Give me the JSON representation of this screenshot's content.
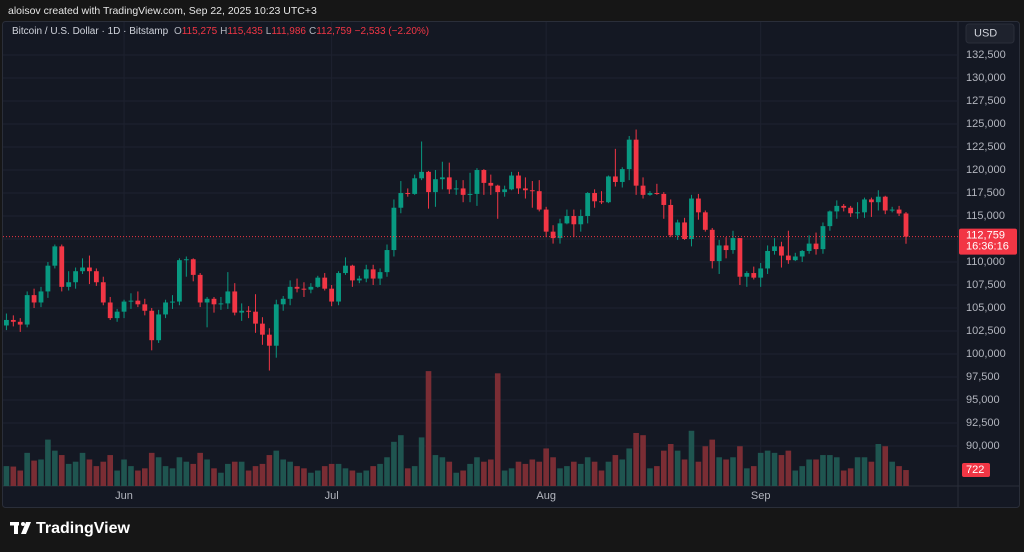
{
  "header": {
    "caption": "aloisov created with TradingView.com, Sep 22, 2025 10:23 UTC+3",
    "logo": "TradingView"
  },
  "chart_data": {
    "type": "candlestick",
    "symbol": "Bitcoin / U.S. Dollar · 1D · Bitstamp",
    "ohlc_legend": [
      {
        "key": "O",
        "value": "115,275"
      },
      {
        "key": "H",
        "value": "115,435"
      },
      {
        "key": "L",
        "value": "111,986"
      },
      {
        "key": "C",
        "value": "112,759"
      }
    ],
    "change": "−2,533 (−2.20%)",
    "currency": "USD",
    "countdown": "16:36:16",
    "categories": [
      null,
      null,
      null,
      null,
      null,
      null,
      null,
      null,
      null,
      null,
      null,
      null,
      null,
      null,
      null,
      null,
      null,
      "Jun",
      null,
      null,
      null,
      null,
      null,
      null,
      null,
      null,
      null,
      null,
      null,
      null,
      null,
      null,
      null,
      null,
      null,
      null,
      null,
      null,
      null,
      null,
      null,
      null,
      null,
      null,
      null,
      null,
      null,
      "Jul",
      null,
      null,
      null,
      null,
      null,
      null,
      null,
      null,
      null,
      null,
      null,
      null,
      null,
      null,
      null,
      null,
      null,
      null,
      null,
      null,
      null,
      null,
      null,
      null,
      null,
      null,
      null,
      null,
      null,
      null,
      "Aug",
      null,
      null,
      null,
      null,
      null,
      null,
      null,
      null,
      null,
      null,
      null,
      null,
      null,
      null,
      null,
      null,
      null,
      null,
      null,
      null,
      null,
      null,
      null,
      null,
      null,
      null,
      null,
      null,
      null,
      null,
      "Sep",
      null,
      null,
      null,
      null,
      null,
      null,
      null,
      null,
      null,
      null,
      null,
      null,
      null,
      null,
      null,
      null,
      null,
      null,
      null,
      null,
      null
    ],
    "open": [
      103100,
      103700,
      103500,
      103200,
      106400,
      105600,
      106800,
      109600,
      111700,
      107300,
      107800,
      109000,
      109400,
      109000,
      107800,
      105600,
      103900,
      104600,
      105700,
      105800,
      105400,
      104700,
      101500,
      104300,
      105600,
      105700,
      110200,
      110300,
      108600,
      105600,
      106000,
      105400,
      105500,
      106800,
      104500,
      104700,
      104600,
      103300,
      102100,
      100900,
      105400,
      106000,
      107300,
      107100,
      107000,
      107300,
      108300,
      107100,
      105700,
      108800,
      109600,
      108000,
      108200,
      109200,
      108200,
      108900,
      111300,
      115900,
      117500,
      117400,
      119100,
      119800,
      117600,
      119000,
      119200,
      117900,
      118000,
      117300,
      117400,
      120000,
      118600,
      118300,
      117600,
      117900,
      119400,
      118000,
      117800,
      117700,
      115700,
      113300,
      112600,
      114200,
      115000,
      114100,
      115000,
      117500,
      116600,
      116500,
      119300,
      118700,
      120100,
      123300,
      118300,
      117300,
      117500,
      117400,
      116200,
      112900,
      114300,
      112500,
      116900,
      115400,
      113500,
      110100,
      111800,
      111300,
      112600,
      108400,
      108800,
      108300,
      109300,
      111200,
      111700,
      110700,
      110200,
      110600,
      111200,
      112000,
      111400,
      113900,
      115500,
      116100,
      115900,
      115300,
      115400,
      116800,
      116500,
      117100,
      115600,
      115700,
      115275
    ],
    "high": [
      104400,
      104200,
      103900,
      106800,
      107100,
      107300,
      110000,
      111900,
      111900,
      109000,
      109400,
      110400,
      110700,
      109300,
      108400,
      106200,
      104900,
      105900,
      106600,
      106800,
      106000,
      105000,
      104800,
      105900,
      106400,
      110400,
      110600,
      110400,
      108800,
      106200,
      106200,
      106200,
      108900,
      107700,
      105500,
      105200,
      106500,
      104000,
      102800,
      105900,
      106300,
      108000,
      108200,
      107800,
      107700,
      108500,
      108800,
      107500,
      109000,
      110500,
      109700,
      108500,
      109700,
      109700,
      109300,
      111900,
      116800,
      118800,
      118000,
      119500,
      123100,
      119900,
      120000,
      120900,
      120800,
      118900,
      118900,
      119700,
      120200,
      120100,
      119500,
      118400,
      118300,
      119800,
      119800,
      119200,
      118800,
      118900,
      116000,
      114000,
      114700,
      115700,
      115700,
      115700,
      117600,
      117900,
      117700,
      119400,
      122300,
      120300,
      123700,
      124400,
      119200,
      117700,
      118500,
      117600,
      116800,
      114600,
      114800,
      117300,
      117400,
      115600,
      113700,
      112400,
      112700,
      113400,
      112600,
      109000,
      109500,
      109900,
      111800,
      112600,
      112200,
      113400,
      111000,
      111300,
      112900,
      113200,
      114300,
      115600,
      116700,
      116300,
      116100,
      116500,
      117000,
      117000,
      117800,
      117200,
      116000,
      116100,
      115435
    ],
    "low": [
      102600,
      103000,
      102400,
      102900,
      105000,
      105100,
      106100,
      109300,
      106800,
      106900,
      107100,
      108700,
      107600,
      107400,
      105300,
      103700,
      103500,
      103900,
      104900,
      105100,
      104200,
      100400,
      101200,
      103900,
      104900,
      105300,
      108400,
      107900,
      105100,
      102900,
      104500,
      104800,
      104900,
      104200,
      103600,
      103900,
      102300,
      101000,
      98200,
      99600,
      104700,
      105300,
      106700,
      106200,
      106600,
      107200,
      106900,
      105200,
      105300,
      108600,
      107300,
      107700,
      107800,
      107500,
      107500,
      108400,
      110600,
      115300,
      117100,
      117300,
      118900,
      115800,
      116000,
      117900,
      117400,
      117300,
      116500,
      116500,
      116100,
      117300,
      117300,
      114700,
      117100,
      117800,
      117400,
      116900,
      115900,
      115500,
      112700,
      112000,
      112000,
      114100,
      112700,
      113300,
      114200,
      115900,
      116300,
      116400,
      118200,
      118100,
      118900,
      117300,
      116900,
      117200,
      117300,
      114700,
      112700,
      112400,
      112400,
      111700,
      114600,
      113300,
      109300,
      108700,
      110400,
      110900,
      107500,
      107300,
      108100,
      107300,
      108700,
      110800,
      109400,
      109800,
      110100,
      110000,
      110900,
      110800,
      110900,
      113400,
      114700,
      115500,
      114900,
      114700,
      114800,
      114900,
      115600,
      115200,
      115400,
      115000,
      111986
    ],
    "close": [
      103700,
      103500,
      103200,
      106400,
      105600,
      106800,
      109600,
      111700,
      107300,
      107800,
      109000,
      109400,
      109000,
      107800,
      105600,
      103900,
      104600,
      105700,
      105800,
      105400,
      104700,
      101500,
      104300,
      105600,
      105700,
      110200,
      110300,
      108600,
      105600,
      106000,
      105400,
      105500,
      106800,
      104500,
      104700,
      104600,
      103300,
      102100,
      100900,
      105400,
      106000,
      107300,
      107100,
      107000,
      107300,
      108300,
      107100,
      105700,
      108800,
      109600,
      108000,
      108200,
      109200,
      108200,
      108900,
      111300,
      115900,
      117500,
      117400,
      119100,
      119800,
      117600,
      119000,
      119200,
      117900,
      118000,
      117300,
      117400,
      120000,
      118600,
      118300,
      117600,
      117900,
      119400,
      118000,
      117800,
      117700,
      115700,
      113300,
      112600,
      114200,
      115000,
      114100,
      115000,
      117500,
      116600,
      116500,
      119300,
      118700,
      120100,
      123300,
      118300,
      117300,
      117500,
      117400,
      116200,
      112900,
      114300,
      112500,
      116900,
      115400,
      113500,
      110100,
      111800,
      111300,
      112600,
      108400,
      108800,
      108300,
      109300,
      111200,
      111700,
      110700,
      110200,
      110600,
      111200,
      112000,
      111400,
      113900,
      115500,
      116100,
      115900,
      115300,
      115400,
      116800,
      116500,
      117100,
      115600,
      115700,
      115275,
      112759
    ],
    "volume": [
      900,
      880,
      700,
      1500,
      1150,
      1200,
      2100,
      1600,
      1400,
      1000,
      1100,
      1500,
      1200,
      900,
      1100,
      1400,
      700,
      1200,
      900,
      700,
      800,
      1500,
      1300,
      900,
      800,
      1300,
      1100,
      1000,
      1500,
      1200,
      800,
      600,
      1000,
      1100,
      1100,
      700,
      900,
      1000,
      1400,
      1600,
      1200,
      1100,
      900,
      800,
      600,
      700,
      900,
      1000,
      1000,
      800,
      700,
      600,
      700,
      900,
      1000,
      1300,
      2000,
      2300,
      800,
      900,
      2200,
      5200,
      1400,
      1300,
      1100,
      600,
      700,
      1000,
      1300,
      1100,
      1200,
      5100,
      700,
      800,
      1100,
      1000,
      1200,
      1100,
      1700,
      1300,
      800,
      900,
      1100,
      1000,
      1300,
      1100,
      700,
      1100,
      1400,
      1200,
      1700,
      2400,
      2300,
      800,
      900,
      1600,
      1900,
      1600,
      1200,
      2500,
      1100,
      1800,
      2100,
      1300,
      1200,
      1300,
      1800,
      800,
      900,
      1500,
      1600,
      1500,
      1400,
      1600,
      700,
      900,
      1200,
      1200,
      1400,
      1400,
      1300,
      700,
      800,
      1300,
      1300,
      1100,
      1900,
      1800,
      1100,
      900,
      722
    ],
    "up_color": "#089981",
    "down_color": "#f23645",
    "volume_up_color": "#1f5550",
    "volume_down_color": "#7a2d34",
    "ylim": [
      85650,
      136090
    ],
    "yticks": [
      {
        "value": 132500,
        "label": "132,500"
      },
      {
        "value": 130000,
        "label": "130,000"
      },
      {
        "value": 127500,
        "label": "127,500"
      },
      {
        "value": 125000,
        "label": "125,000"
      },
      {
        "value": 122500,
        "label": "122,500"
      },
      {
        "value": 120000,
        "label": "120,000"
      },
      {
        "value": 117500,
        "label": "117,500"
      },
      {
        "value": 115000,
        "label": "115,000"
      },
      {
        "value": 112500,
        "label": "112,500"
      },
      {
        "value": 110000,
        "label": "110,000"
      },
      {
        "value": 107500,
        "label": "107,500"
      },
      {
        "value": 105000,
        "label": "105,000"
      },
      {
        "value": 102500,
        "label": "102,500"
      },
      {
        "value": 100000,
        "label": "100,000"
      },
      {
        "value": 97500,
        "label": "97,500"
      },
      {
        "value": 95000,
        "label": "95,000"
      },
      {
        "value": 92500,
        "label": "92,500"
      },
      {
        "value": 90000,
        "label": "90,000"
      }
    ],
    "y2lim": [
      0,
      21000
    ],
    "grid": true
  }
}
